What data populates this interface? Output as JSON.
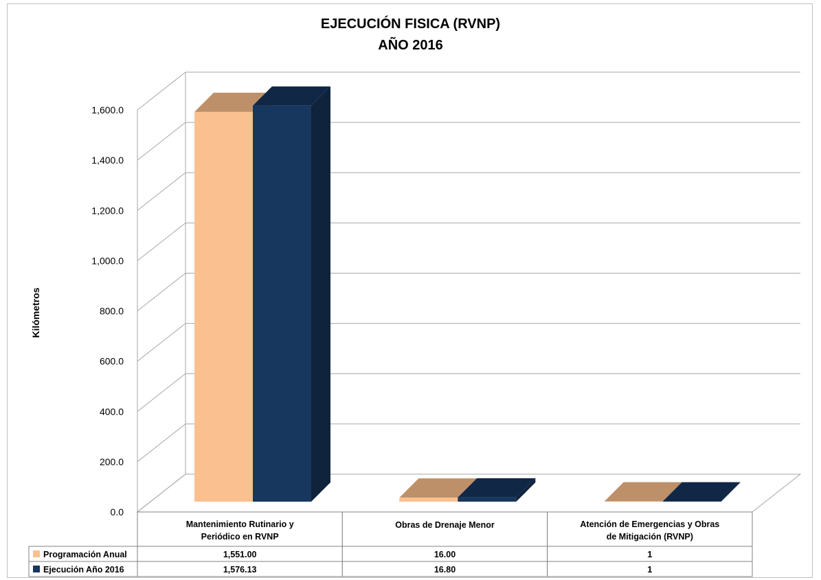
{
  "title": "EJECUCIÓN FISICA (RVNP)",
  "subtitle": "AÑO 2016",
  "chart_data": {
    "type": "bar",
    "title": "EJECUCIÓN FISICA (RVNP)",
    "subtitle": "AÑO 2016",
    "ylabel": "Kilómetros",
    "xlabel": "",
    "ylim": [
      0,
      1600
    ],
    "yticks": [
      "0.0",
      "200.0",
      "400.0",
      "600.0",
      "800.0",
      "1,000.0",
      "1,200.0",
      "1,400.0",
      "1,600.0"
    ],
    "categories": [
      [
        "Mantenimiento Rutinario y",
        "Periódico en RVNP"
      ],
      [
        "Obras de Drenaje Menor"
      ],
      [
        "Atención de Emergencias y Obras",
        "de Mitigación (RVNP)"
      ]
    ],
    "series": [
      {
        "name": "Programación Anual",
        "values": [
          1551.0,
          16.0,
          1
        ],
        "labels": [
          "1,551.00",
          "16.00",
          "1"
        ],
        "color": "#FAC090",
        "top_color": "#BE9069",
        "side_color": "#C8976E"
      },
      {
        "name": "Ejecución Año 2016",
        "values": [
          1576.13,
          16.8,
          1
        ],
        "labels": [
          "1,576.13",
          "16.80",
          "1"
        ],
        "color": "#17375E",
        "top_color": "#102846",
        "side_color": "#0F233D"
      }
    ],
    "grid": true,
    "legend": "data-table"
  }
}
